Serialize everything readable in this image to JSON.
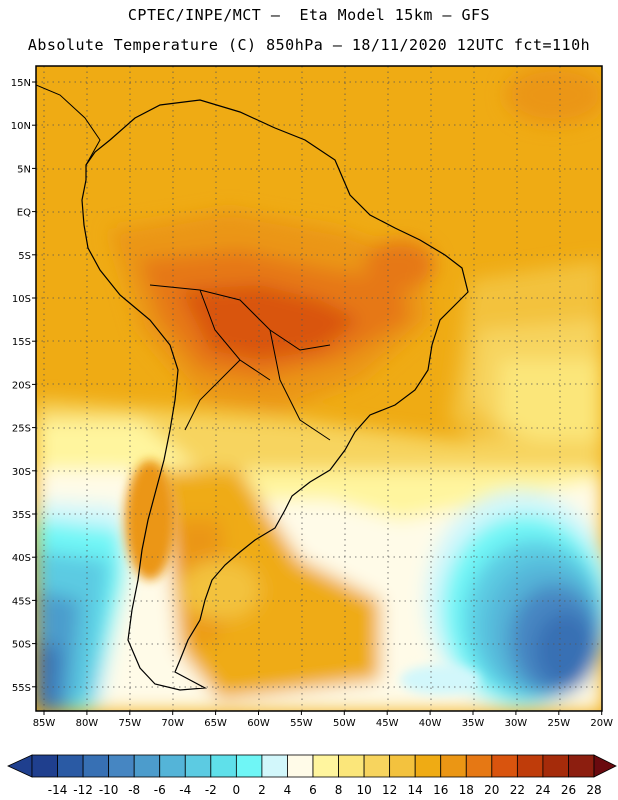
{
  "header": {
    "line1": "CPTEC/INPE/MCT –  Eta Model 15km – GFS",
    "line2": "Absolute Temperature (C) 850hPa – 18/11/2020 12UTC fct=110h"
  },
  "map": {
    "lat_labels": [
      "15N",
      "10N",
      "5N",
      "EQ",
      "5S",
      "10S",
      "15S",
      "20S",
      "25S",
      "30S",
      "35S",
      "40S",
      "45S",
      "50S",
      "55S"
    ],
    "lon_labels": [
      "85W",
      "80W",
      "75W",
      "70W",
      "65W",
      "60W",
      "55W",
      "50W",
      "45W",
      "40W",
      "35W",
      "30W",
      "25W",
      "20W"
    ]
  },
  "colorbar": {
    "ticks": [
      "-14",
      "-12",
      "-10",
      "-8",
      "-6",
      "-4",
      "-2",
      "0",
      "2",
      "4",
      "6",
      "8",
      "10",
      "12",
      "14",
      "16",
      "18",
      "20",
      "22",
      "24",
      "26",
      "28"
    ],
    "colors": [
      "#6a0a0f",
      "#1f3f8e",
      "#2a5aa4",
      "#3770b4",
      "#4686c2",
      "#4c9ccc",
      "#54b4d8",
      "#5ccbe2",
      "#5fe0ea",
      "#6ff6f6",
      "#d2f7fb",
      "#fffbe8",
      "#fff59e",
      "#fbe67a",
      "#f7d45e",
      "#f3c23e",
      "#efab14",
      "#eb9614",
      "#e67814",
      "#d9540e",
      "#bf3c0a",
      "#a52b0a",
      "#8c1e0f",
      "#6e1210"
    ]
  }
}
